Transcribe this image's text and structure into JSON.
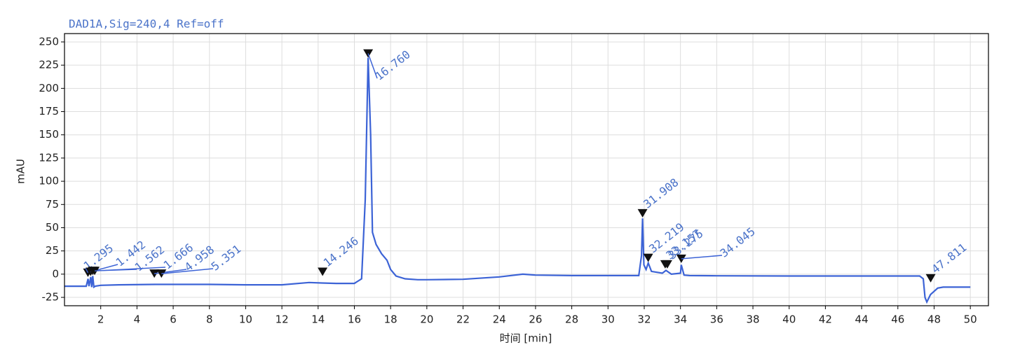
{
  "chart_data": {
    "type": "line",
    "title": "DAD1A,Sig=240,4  Ref=off",
    "xlabel": "时间 [min]",
    "ylabel": "mAU",
    "xlim": [
      0,
      51
    ],
    "ylim": [
      -34,
      259
    ],
    "xticks": [
      2,
      4,
      6,
      8,
      10,
      12,
      14,
      16,
      18,
      20,
      22,
      24,
      26,
      28,
      30,
      32,
      34,
      36,
      38,
      40,
      42,
      44,
      46,
      48,
      50
    ],
    "yticks": [
      -25,
      0,
      25,
      50,
      75,
      100,
      125,
      150,
      175,
      200,
      225,
      250
    ],
    "grid": true,
    "series": [
      {
        "color": "#3c63d6",
        "x": [
          0,
          1.2,
          1.3,
          1.35,
          1.45,
          1.5,
          1.56,
          1.62,
          1.7,
          2,
          3,
          5,
          8,
          10,
          12,
          13.5,
          14.2,
          15,
          16,
          16.4,
          16.6,
          16.76,
          16.9,
          17.0,
          17.2,
          17.5,
          17.8,
          18.0,
          18.3,
          18.8,
          19.5,
          20,
          22,
          24,
          25.3,
          26,
          28,
          30,
          31.7,
          31.85,
          31.908,
          31.98,
          32.1,
          32.22,
          32.4,
          33.0,
          33.2,
          33.5,
          34.0,
          34.045,
          34.2,
          34.5,
          36,
          40,
          45,
          47.2,
          47.4,
          47.5,
          47.6,
          47.8,
          48.2,
          48.5,
          50
        ],
        "values": [
          -13,
          -13,
          -5,
          -13,
          -3,
          -14,
          -2,
          -14,
          -13,
          -12,
          -11.5,
          -11,
          -11,
          -11.5,
          -11.5,
          -9,
          -9.5,
          -10,
          -10,
          -5,
          80,
          233,
          150,
          45,
          32,
          22,
          15,
          5,
          -2,
          -5,
          -6,
          -6,
          -5.5,
          -3,
          0,
          -1,
          -1.5,
          -1.5,
          -1.5,
          20,
          60,
          10,
          5,
          12,
          3,
          1,
          4,
          0,
          1,
          10,
          -1,
          -1.5,
          -1.8,
          -2,
          -2,
          -2,
          -5,
          -25,
          -30,
          -22,
          -15,
          -14,
          -14
        ]
      }
    ],
    "peaks": {
      "labels": [
        "1.295",
        "1.442",
        "1.562",
        "1.666",
        "4.958",
        "5.351",
        "14.246",
        "16.760",
        "31.908",
        "32.219",
        "33.157",
        "33.275",
        "34.045",
        "47.811"
      ],
      "x": [
        1.295,
        1.442,
        1.562,
        1.666,
        4.958,
        5.351,
        14.246,
        16.76,
        31.908,
        32.219,
        33.157,
        33.275,
        34.045,
        47.811
      ],
      "y": [
        -3,
        -2,
        -1,
        -1,
        -4,
        -4,
        -2,
        233,
        61,
        13,
        6,
        6,
        12,
        -9
      ]
    }
  }
}
